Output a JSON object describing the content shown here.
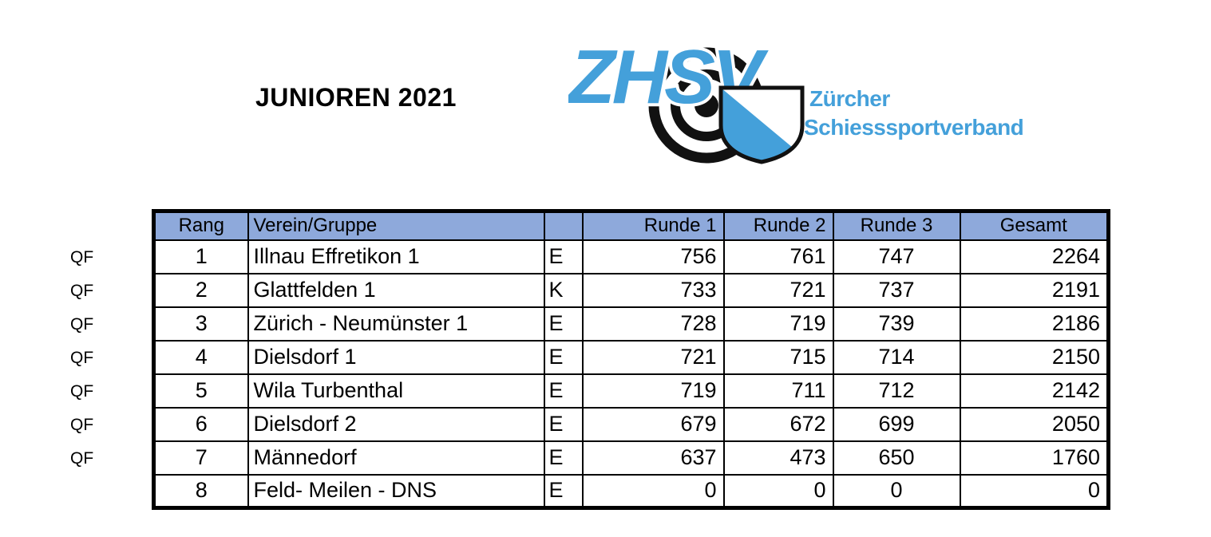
{
  "page": {
    "title": "JUNIOREN 2021"
  },
  "logo": {
    "acronym": "ZHSV",
    "org_line1": "Zürcher",
    "org_line2": "Schiesssportverband",
    "blue": "#44a0da"
  },
  "table": {
    "header_bg": "#8ea9db",
    "category_gray": "#b3b3b3",
    "headers": {
      "rang": "Rang",
      "verein": "Verein/Gruppe",
      "kat": "",
      "runde1": "Runde 1",
      "runde2": "Runde 2",
      "runde3": "Runde 3",
      "gesamt": "Gesamt"
    },
    "rows": [
      {
        "qualifier": "QF",
        "rang": "1",
        "verein": "Illnau Effretikon 1",
        "kat": "E",
        "runde1": "756",
        "runde2": "761",
        "runde3": "747",
        "gesamt": "2264"
      },
      {
        "qualifier": "QF",
        "rang": "2",
        "verein": "Glattfelden 1",
        "kat": "K",
        "runde1": "733",
        "runde2": "721",
        "runde3": "737",
        "gesamt": "2191"
      },
      {
        "qualifier": "QF",
        "rang": "3",
        "verein": "Zürich - Neumünster 1",
        "kat": "E",
        "runde1": "728",
        "runde2": "719",
        "runde3": "739",
        "gesamt": "2186"
      },
      {
        "qualifier": "QF",
        "rang": "4",
        "verein": "Dielsdorf 1",
        "kat": "E",
        "runde1": "721",
        "runde2": "715",
        "runde3": "714",
        "gesamt": "2150"
      },
      {
        "qualifier": "QF",
        "rang": "5",
        "verein": "Wila Turbenthal",
        "kat": "E",
        "runde1": "719",
        "runde2": "711",
        "runde3": "712",
        "gesamt": "2142"
      },
      {
        "qualifier": "QF",
        "rang": "6",
        "verein": "Dielsdorf 2",
        "kat": "E",
        "runde1": "679",
        "runde2": "672",
        "runde3": "699",
        "gesamt": "2050"
      },
      {
        "qualifier": "QF",
        "rang": "7",
        "verein": "Männedorf",
        "kat": "E",
        "runde1": "637",
        "runde2": "473",
        "runde3": "650",
        "gesamt": "1760"
      },
      {
        "qualifier": "",
        "rang": "8",
        "verein": "Feld- Meilen - DNS",
        "kat": "E",
        "runde1": "0",
        "runde2": "0",
        "runde3": "0",
        "gesamt": "0"
      }
    ]
  }
}
